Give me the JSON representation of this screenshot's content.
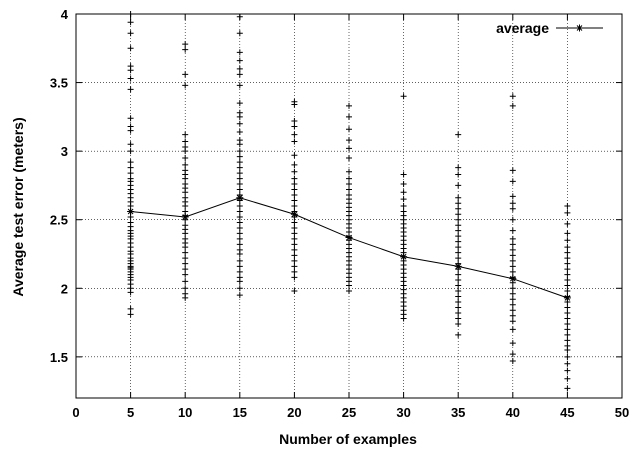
{
  "chart_data": {
    "type": "scatter",
    "xlabel": "Number of examples",
    "ylabel": "Average test error (meters)",
    "xlim": [
      0,
      50
    ],
    "ylim": [
      1.2,
      4
    ],
    "xticks": [
      0,
      5,
      10,
      15,
      20,
      25,
      30,
      35,
      40,
      45,
      50
    ],
    "yticks": [
      1.5,
      2,
      2.5,
      3,
      3.5,
      4
    ],
    "grid": true,
    "legend_position": "top-right",
    "series": [
      {
        "name": "average",
        "style": "line-with-star-markers",
        "x": [
          5,
          10,
          15,
          20,
          25,
          30,
          35,
          40,
          45
        ],
        "y": [
          2.56,
          2.52,
          2.66,
          2.54,
          2.37,
          2.23,
          2.16,
          2.07,
          1.93
        ]
      }
    ],
    "samples": [
      {
        "x": 5,
        "y": [
          1.81,
          1.85,
          1.97,
          2.0,
          2.03,
          2.06,
          2.08,
          2.1,
          2.12,
          2.14,
          2.15,
          2.16,
          2.18,
          2.2,
          2.22,
          2.25,
          2.27,
          2.3,
          2.33,
          2.36,
          2.38,
          2.4,
          2.42,
          2.45,
          2.48,
          2.52,
          2.56,
          2.6,
          2.63,
          2.66,
          2.69,
          2.72,
          2.75,
          2.78,
          2.8,
          2.84,
          2.88,
          2.92,
          3.0,
          3.05,
          3.15,
          3.18,
          3.24,
          3.45,
          3.53,
          3.59,
          3.62,
          3.75,
          3.86,
          3.94,
          4.0
        ]
      },
      {
        "x": 10,
        "y": [
          1.93,
          1.96,
          2.0,
          2.05,
          2.1,
          2.14,
          2.18,
          2.22,
          2.26,
          2.3,
          2.33,
          2.36,
          2.4,
          2.43,
          2.46,
          2.5,
          2.53,
          2.56,
          2.6,
          2.63,
          2.66,
          2.7,
          2.73,
          2.76,
          2.8,
          2.83,
          2.86,
          2.9,
          2.95,
          3.0,
          3.03,
          3.07,
          3.12,
          3.48,
          3.56,
          3.74,
          3.78
        ]
      },
      {
        "x": 15,
        "y": [
          1.95,
          2.0,
          2.05,
          2.08,
          2.12,
          2.16,
          2.2,
          2.25,
          2.28,
          2.32,
          2.36,
          2.4,
          2.44,
          2.48,
          2.52,
          2.56,
          2.6,
          2.64,
          2.68,
          2.72,
          2.76,
          2.8,
          2.84,
          2.88,
          2.92,
          2.96,
          3.0,
          3.05,
          3.08,
          3.14,
          3.2,
          3.25,
          3.28,
          3.35,
          3.48,
          3.56,
          3.6,
          3.66,
          3.72,
          3.86,
          3.98
        ]
      },
      {
        "x": 20,
        "y": [
          1.98,
          2.08,
          2.12,
          2.16,
          2.2,
          2.24,
          2.28,
          2.32,
          2.36,
          2.4,
          2.44,
          2.48,
          2.52,
          2.56,
          2.6,
          2.64,
          2.68,
          2.72,
          2.76,
          2.8,
          2.85,
          2.9,
          2.97,
          3.07,
          3.12,
          3.18,
          3.22,
          3.34,
          3.36
        ]
      },
      {
        "x": 25,
        "y": [
          1.98,
          2.02,
          2.05,
          2.08,
          2.11,
          2.14,
          2.17,
          2.2,
          2.23,
          2.26,
          2.29,
          2.32,
          2.35,
          2.38,
          2.41,
          2.44,
          2.47,
          2.5,
          2.53,
          2.56,
          2.59,
          2.62,
          2.65,
          2.68,
          2.72,
          2.76,
          2.8,
          2.85,
          2.95,
          3.02,
          3.08,
          3.16,
          3.25,
          3.33
        ]
      },
      {
        "x": 30,
        "y": [
          1.78,
          1.81,
          1.84,
          1.87,
          1.9,
          1.93,
          1.96,
          1.99,
          2.02,
          2.05,
          2.08,
          2.11,
          2.14,
          2.17,
          2.2,
          2.23,
          2.26,
          2.29,
          2.32,
          2.35,
          2.38,
          2.41,
          2.44,
          2.47,
          2.5,
          2.53,
          2.56,
          2.6,
          2.65,
          2.7,
          2.76,
          2.83,
          3.4
        ]
      },
      {
        "x": 35,
        "y": [
          1.66,
          1.74,
          1.78,
          1.82,
          1.86,
          1.9,
          1.94,
          1.98,
          2.02,
          2.06,
          2.1,
          2.14,
          2.18,
          2.22,
          2.26,
          2.3,
          2.34,
          2.38,
          2.42,
          2.46,
          2.5,
          2.54,
          2.58,
          2.62,
          2.66,
          2.75,
          2.83,
          2.88,
          3.12
        ]
      },
      {
        "x": 40,
        "y": [
          1.47,
          1.52,
          1.6,
          1.7,
          1.76,
          1.8,
          1.84,
          1.88,
          1.92,
          1.96,
          2.0,
          2.04,
          2.08,
          2.12,
          2.16,
          2.2,
          2.24,
          2.28,
          2.32,
          2.36,
          2.42,
          2.5,
          2.58,
          2.62,
          2.67,
          2.78,
          2.86,
          3.33,
          3.4
        ]
      },
      {
        "x": 45,
        "y": [
          1.27,
          1.34,
          1.4,
          1.45,
          1.5,
          1.55,
          1.58,
          1.62,
          1.66,
          1.7,
          1.74,
          1.78,
          1.82,
          1.86,
          1.9,
          1.94,
          1.98,
          2.02,
          2.06,
          2.1,
          2.14,
          2.18,
          2.22,
          2.26,
          2.3,
          2.35,
          2.4,
          2.47,
          2.55,
          2.6
        ]
      }
    ]
  }
}
